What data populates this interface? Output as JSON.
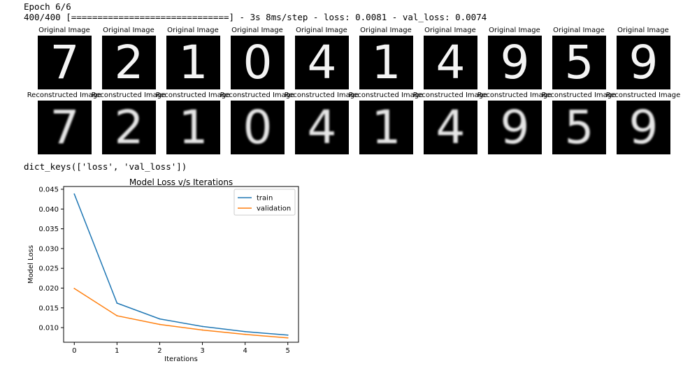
{
  "console": {
    "epoch_line": "Epoch 6/6",
    "progress_line": "400/400 [==============================] - 3s 8ms/step - loss: 0.0081 - val_loss: 0.0074",
    "keys_line": "dict_keys(['loss', 'val_loss'])"
  },
  "originals": {
    "title": "Original Image",
    "digits": [
      "7",
      "2",
      "1",
      "0",
      "4",
      "1",
      "4",
      "9",
      "5",
      "9"
    ]
  },
  "reconstructions": {
    "title": "Reconstructed Image",
    "digits": [
      "7",
      "2",
      "1",
      "0",
      "4",
      "1",
      "4",
      "9",
      "5",
      "9"
    ]
  },
  "chart_data": {
    "type": "line",
    "title": "Model Loss v/s Iterations",
    "xlabel": "Iterations",
    "ylabel": "Model Loss",
    "x": [
      0,
      1,
      2,
      3,
      4,
      5
    ],
    "xticks": [
      "0",
      "1",
      "2",
      "3",
      "4",
      "5"
    ],
    "yticks": [
      "0.010",
      "0.015",
      "0.020",
      "0.025",
      "0.030",
      "0.035",
      "0.040",
      "0.045"
    ],
    "ytick_values": [
      0.01,
      0.015,
      0.02,
      0.025,
      0.03,
      0.035,
      0.04,
      0.045
    ],
    "xlim": [
      -0.25,
      5.25
    ],
    "ylim": [
      0.0063,
      0.0457
    ],
    "grid": false,
    "legend_position": "top-right",
    "series": [
      {
        "name": "train",
        "color": "#1f77b4",
        "values": [
          0.0438,
          0.0162,
          0.0122,
          0.0103,
          0.009,
          0.0081
        ]
      },
      {
        "name": "validation",
        "color": "#ff7f0e",
        "values": [
          0.0199,
          0.013,
          0.0108,
          0.0094,
          0.0083,
          0.0074
        ]
      }
    ]
  }
}
